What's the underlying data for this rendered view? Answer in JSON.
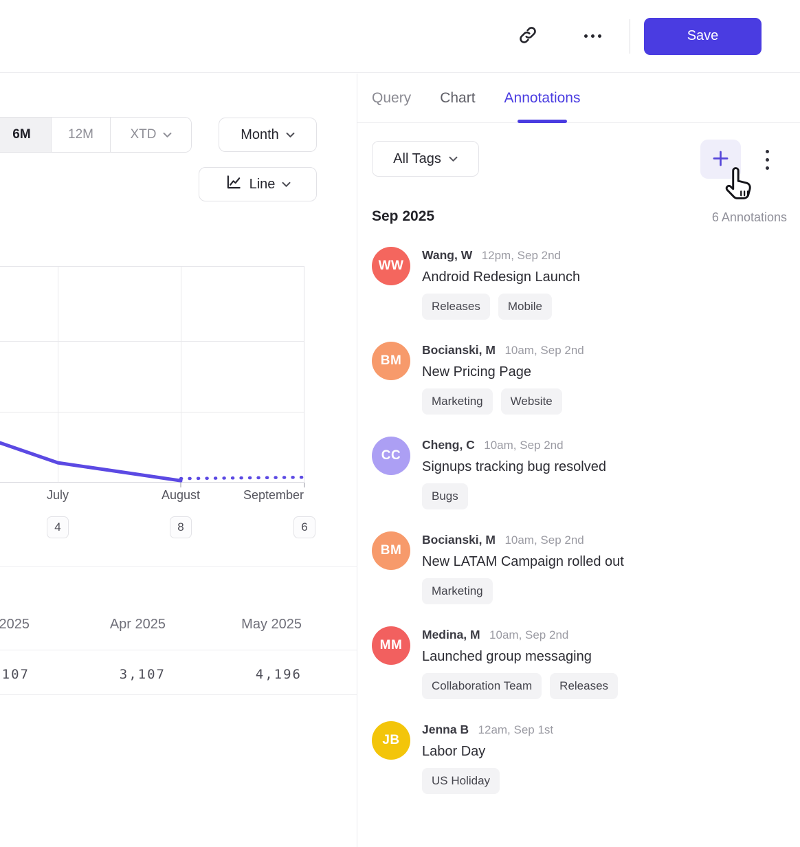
{
  "colors": {
    "accent": "#4a3ce1",
    "chart_line": "#5b49e3",
    "plus_button_bg": "#efeefa",
    "tag_pill_bg": "#f3f3f5"
  },
  "header": {
    "save_label": "Save",
    "icons": {
      "share": "link-icon",
      "more": "ellipsis-icon"
    }
  },
  "left_panel": {
    "range_options": [
      "6M",
      "12M",
      "XTD"
    ],
    "active_range": "6M",
    "interval_label": "Month",
    "chart_type_label": "Line",
    "chart_type_icon": "line-chart-icon",
    "summary_table": {
      "columns": [
        "2025",
        "Apr 2025",
        "May 2025"
      ],
      "values": [
        "107",
        "3,107",
        "4,196"
      ]
    }
  },
  "chart_data": {
    "type": "line",
    "x_labels": [
      "July",
      "August",
      "September"
    ],
    "x_badge_counts": [
      "4",
      "8",
      "6"
    ],
    "y_axis_visible": false,
    "gridlines": true,
    "line_color": "#5b49e3",
    "series": [
      {
        "name": "metric",
        "segments": [
          {
            "style": "solid",
            "points_frac": [
              [
                0.0,
                0.187
              ],
              [
                0.19,
                0.095
              ],
              [
                0.39,
                0.054
              ],
              [
                0.594,
                0.012
              ]
            ]
          },
          {
            "style": "dotted-forecast",
            "points_frac": [
              [
                0.594,
                0.022
              ],
              [
                1.0,
                0.028
              ]
            ]
          }
        ]
      }
    ]
  },
  "right_panel": {
    "tabs": [
      "Query",
      "Chart",
      "Annotations"
    ],
    "active_tab": "Annotations",
    "filter_label": "All Tags",
    "toolbar_icons": {
      "add": "plus-icon",
      "menu": "kebab-icon",
      "cursor": "hand-pointer-cursor"
    },
    "section": {
      "month": "Sep 2025",
      "count": "6 Annotations"
    },
    "annotations": [
      {
        "initials": "WW",
        "avatar_color": "#f4665e",
        "name": "Wang, W",
        "time": "12pm, Sep 2nd",
        "title": "Android Redesign Launch",
        "tags": [
          "Releases",
          "Mobile"
        ]
      },
      {
        "initials": "BM",
        "avatar_color": "#f79a6b",
        "name": "Bocianski, M",
        "time": "10am, Sep 2nd",
        "title": "New Pricing Page",
        "tags": [
          "Marketing",
          "Website"
        ]
      },
      {
        "initials": "CC",
        "avatar_color": "#ac9ff4",
        "name": "Cheng, C",
        "time": "10am, Sep 2nd",
        "title": "Signups tracking bug resolved",
        "tags": [
          "Bugs"
        ]
      },
      {
        "initials": "BM",
        "avatar_color": "#f79a6b",
        "name": "Bocianski, M",
        "time": "10am, Sep 2nd",
        "title": "New LATAM Campaign rolled out",
        "tags": [
          "Marketing"
        ]
      },
      {
        "initials": "MM",
        "avatar_color": "#f2605f",
        "name": "Medina, M",
        "time": "10am, Sep 2nd",
        "title": "Launched group messaging",
        "tags": [
          "Collaboration Team",
          "Releases"
        ]
      },
      {
        "initials": "JB",
        "avatar_color": "#f3c50a",
        "name": "Jenna B",
        "time": "12am, Sep 1st",
        "title": "Labor Day",
        "tags": [
          "US Holiday"
        ]
      }
    ]
  }
}
